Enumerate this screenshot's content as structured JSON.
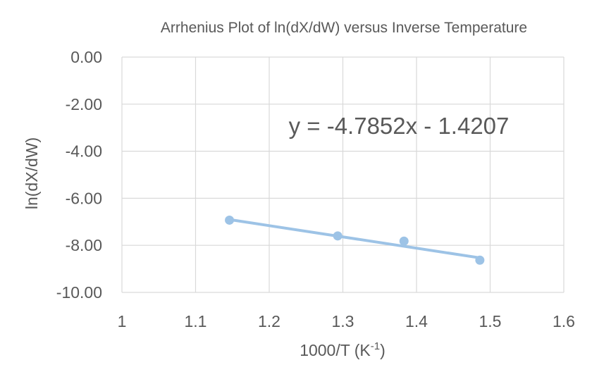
{
  "chart_data": {
    "type": "scatter",
    "title": "Arrhenius Plot of ln(dX/dW) versus Inverse Temperature",
    "xlabel": "1000/T (K",
    "xlabel_superscript": "-1",
    "xlabel_suffix": ")",
    "ylabel": "ln(dX/dW)",
    "xlim": [
      1,
      1.6
    ],
    "ylim": [
      -10,
      0
    ],
    "x_ticks": [
      1,
      1.1,
      1.2,
      1.3,
      1.4,
      1.5,
      1.6
    ],
    "x_tick_labels": [
      "1",
      "1.1",
      "1.2",
      "1.3",
      "1.4",
      "1.5",
      "1.6"
    ],
    "y_ticks": [
      0,
      -2,
      -4,
      -6,
      -8,
      -10
    ],
    "y_tick_labels": [
      "0.00",
      "-2.00",
      "-4.00",
      "-6.00",
      "-8.00",
      "-10.00"
    ],
    "grid": true,
    "series": [
      {
        "x": [
          1.146,
          1.293,
          1.383,
          1.486
        ],
        "y": [
          -6.93,
          -7.6,
          -7.82,
          -8.63
        ],
        "color": "#9dc3e6"
      }
    ],
    "trendline": {
      "slope": -4.7852,
      "intercept": -1.4207,
      "x_range": [
        1.146,
        1.486
      ],
      "equation": "y = -4.7852x - 1.4207",
      "color": "#9dc3e6"
    },
    "colors": {
      "text": "#595959",
      "grid": "#d9d9d9",
      "marker": "#9dc3e6"
    }
  }
}
